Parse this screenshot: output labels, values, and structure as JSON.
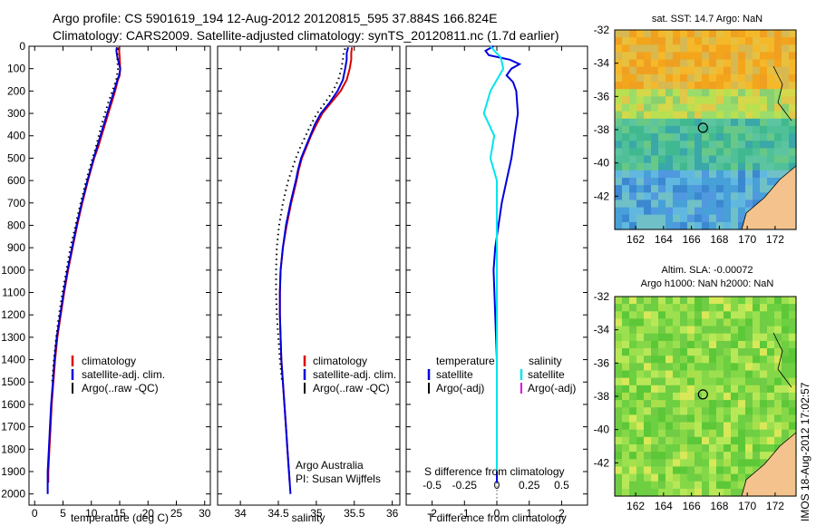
{
  "header": {
    "line1": "Argo profile: CS 5901619_194 12-Aug-2012 20120815_595 37.884S 166.824E",
    "line2": "Climatology: CARS2009. Satellite-adjusted climatology: synTS_20120811.nc (1.7d earlier)"
  },
  "side_stamp": "IMOS 18-Aug-2012 17:02:57",
  "depth_ticks": [
    "0",
    "100",
    "200",
    "300",
    "400",
    "500",
    "600",
    "700",
    "800",
    "900",
    "1000",
    "1100",
    "1200",
    "1300",
    "1400",
    "1500",
    "1600",
    "1700",
    "1800",
    "1900",
    "2000"
  ],
  "colors": {
    "climatology": "#dd0000",
    "satellite": "#0000dd",
    "argo": "#000000",
    "sat_salinity": "#00e5ee",
    "argo_salinity": "#dd00dd",
    "land": "#f4c28c"
  },
  "chart_data": [
    {
      "type": "line",
      "panel": "temperature",
      "xlabel": "temperature (deg C)",
      "xlim": [
        -1,
        31
      ],
      "xticks": [
        "0",
        "5",
        "10",
        "15",
        "20",
        "25",
        "30"
      ],
      "ylim": [
        0,
        2050
      ],
      "y_reversed": true,
      "legend": [
        "climatology",
        "satellite-adj. clim.",
        "Argo(..raw -QC)"
      ],
      "series": [
        {
          "name": "climatology",
          "depth": [
            5,
            20,
            50,
            100,
            130,
            150,
            200,
            250,
            300,
            350,
            400,
            450,
            500,
            600,
            700,
            800,
            900,
            1000,
            1100,
            1200,
            1300,
            1400,
            1500,
            1600,
            1700,
            1800,
            1900,
            1950
          ],
          "values": [
            14.8,
            14.9,
            15.0,
            15.1,
            15.0,
            14.7,
            14.2,
            13.6,
            13.0,
            12.4,
            11.8,
            11.2,
            10.5,
            9.4,
            8.4,
            7.5,
            6.7,
            5.9,
            5.2,
            4.6,
            4.0,
            3.6,
            3.3,
            3.0,
            2.8,
            2.6,
            2.4,
            2.4
          ]
        },
        {
          "name": "satellite-adj. clim.",
          "depth": [
            5,
            20,
            50,
            100,
            130,
            150,
            200,
            250,
            300,
            350,
            400,
            450,
            500,
            600,
            700,
            800,
            900,
            1000,
            1100,
            1200,
            1300,
            1400,
            1500,
            1600,
            1700,
            1800,
            1900,
            2000
          ],
          "values": [
            14.5,
            14.4,
            14.6,
            15.1,
            14.9,
            14.6,
            14.0,
            13.4,
            12.8,
            12.2,
            11.6,
            11.0,
            10.4,
            9.3,
            8.3,
            7.4,
            6.6,
            5.8,
            5.1,
            4.5,
            3.9,
            3.5,
            3.2,
            2.9,
            2.7,
            2.5,
            2.3,
            2.3
          ]
        },
        {
          "name": "Argo(..raw -QC)",
          "depth": [
            10,
            30,
            60,
            100,
            150,
            200,
            250,
            300,
            350,
            400,
            450,
            500,
            600,
            700,
            800,
            900,
            1000,
            1100,
            1200,
            1300,
            1400,
            1500
          ],
          "values": [
            14.7,
            14.6,
            14.6,
            14.7,
            14.4,
            13.7,
            13.0,
            12.4,
            11.8,
            11.3,
            10.8,
            10.2,
            9.1,
            8.1,
            7.2,
            6.3,
            5.6,
            4.9,
            4.3,
            3.8,
            3.4,
            3.1
          ]
        }
      ]
    },
    {
      "type": "line",
      "panel": "salinity",
      "xlabel": "salinity",
      "xlim": [
        33.7,
        36.1
      ],
      "xticks": [
        "34",
        "34.5",
        "35",
        "35.5",
        "36"
      ],
      "ylim": [
        0,
        2050
      ],
      "y_reversed": true,
      "legend": [
        "climatology",
        "satellite-adj. clim.",
        "Argo(..raw -QC)"
      ],
      "annotation": [
        "Argo Australia",
        "PI: Susan Wijffels"
      ],
      "series": [
        {
          "name": "climatology",
          "depth": [
            5,
            30,
            60,
            100,
            150,
            200,
            250,
            300,
            350,
            400,
            450,
            500,
            550,
            600,
            700,
            800,
            900,
            1000,
            1100,
            1200,
            1300,
            1400,
            1500,
            1600,
            1700,
            1800,
            1900,
            1950
          ],
          "values": [
            35.47,
            35.46,
            35.46,
            35.44,
            35.4,
            35.32,
            35.2,
            35.08,
            35.0,
            34.93,
            34.87,
            34.81,
            34.77,
            34.74,
            34.67,
            34.61,
            34.56,
            34.53,
            34.52,
            34.52,
            34.53,
            34.54,
            34.56,
            34.58,
            34.6,
            34.62,
            34.64,
            34.65
          ]
        },
        {
          "name": "satellite-adj. clim.",
          "depth": [
            5,
            30,
            60,
            100,
            150,
            200,
            250,
            300,
            350,
            400,
            450,
            500,
            550,
            600,
            700,
            800,
            900,
            1000,
            1100,
            1200,
            1300,
            1400,
            1500,
            1600,
            1700,
            1800,
            1900,
            2000
          ],
          "values": [
            35.42,
            35.4,
            35.4,
            35.38,
            35.35,
            35.28,
            35.18,
            35.06,
            34.98,
            34.92,
            34.86,
            34.8,
            34.76,
            34.73,
            34.66,
            34.6,
            34.56,
            34.53,
            34.52,
            34.52,
            34.53,
            34.54,
            34.56,
            34.58,
            34.6,
            34.62,
            34.64,
            34.66
          ]
        },
        {
          "name": "Argo(..raw -QC)",
          "depth": [
            10,
            30,
            60,
            100,
            150,
            200,
            250,
            300,
            350,
            400,
            450,
            500,
            600,
            700,
            800,
            900,
            1000,
            1100,
            1200,
            1300,
            1400,
            1500
          ],
          "values": [
            35.38,
            35.36,
            35.35,
            35.33,
            35.29,
            35.22,
            35.12,
            35.01,
            34.93,
            34.86,
            34.79,
            34.73,
            34.63,
            34.56,
            34.51,
            34.48,
            34.47,
            34.47,
            34.48,
            34.5,
            34.52,
            34.55
          ]
        }
      ]
    },
    {
      "type": "line",
      "panel": "difference",
      "xlabel": "T difference from climatology",
      "xlabel_top": "S difference from climatology",
      "xlim": [
        -2.8,
        2.8
      ],
      "xticks": [
        "-2",
        "-1",
        "0",
        "1",
        "2"
      ],
      "xticks_salinity": [
        "-0.5",
        "-0.25",
        "0",
        "0.25",
        "0.5"
      ],
      "ylim": [
        0,
        2050
      ],
      "y_reversed": true,
      "legend_temperature_title": "temperature",
      "legend_salinity_title": "salinity",
      "legend_temperature": [
        "satellite",
        "Argo(-adj)"
      ],
      "legend_salinity": [
        "satellite",
        "Argo(-adj)"
      ],
      "series": [
        {
          "name": "temperature satellite",
          "depth": [
            0,
            20,
            40,
            60,
            80,
            100,
            130,
            160,
            200,
            300,
            400,
            500,
            600,
            700,
            800,
            900,
            1000,
            1200,
            1400,
            1600,
            1800,
            1950
          ],
          "values": [
            -0.1,
            -0.35,
            -0.25,
            0.4,
            0.7,
            0.45,
            0.3,
            0.5,
            0.6,
            0.65,
            0.55,
            0.45,
            0.3,
            0.15,
            0.05,
            -0.05,
            -0.1,
            -0.05,
            0,
            0,
            0,
            0
          ]
        },
        {
          "name": "salinity satellite",
          "depth": [
            0,
            20,
            50,
            100,
            150,
            200,
            300,
            400,
            500,
            600,
            700,
            800,
            1000,
            1400,
            1800,
            1900
          ],
          "values": [
            -0.05,
            -0.02,
            0.03,
            0.05,
            0.0,
            -0.05,
            -0.1,
            -0.02,
            -0.05,
            0.0,
            0.0,
            0.0,
            0.0,
            0.0,
            0.0,
            0.0
          ]
        }
      ]
    }
  ],
  "maps": [
    {
      "title": "sat. SST: 14.7  Argo: NaN",
      "yticks": [
        "-32",
        "-34",
        "-36",
        "-38",
        "-40",
        "-42"
      ],
      "xticks": [
        "162",
        "164",
        "166",
        "168",
        "170",
        "172"
      ]
    },
    {
      "title_line1": "Altim. SLA: -0.00072",
      "title_line2": "Argo h1000: NaN h2000: NaN",
      "yticks": [
        "-32",
        "-34",
        "-36",
        "-38",
        "-40",
        "-42"
      ],
      "xticks": [
        "162",
        "164",
        "166",
        "168",
        "170",
        "172"
      ]
    }
  ]
}
